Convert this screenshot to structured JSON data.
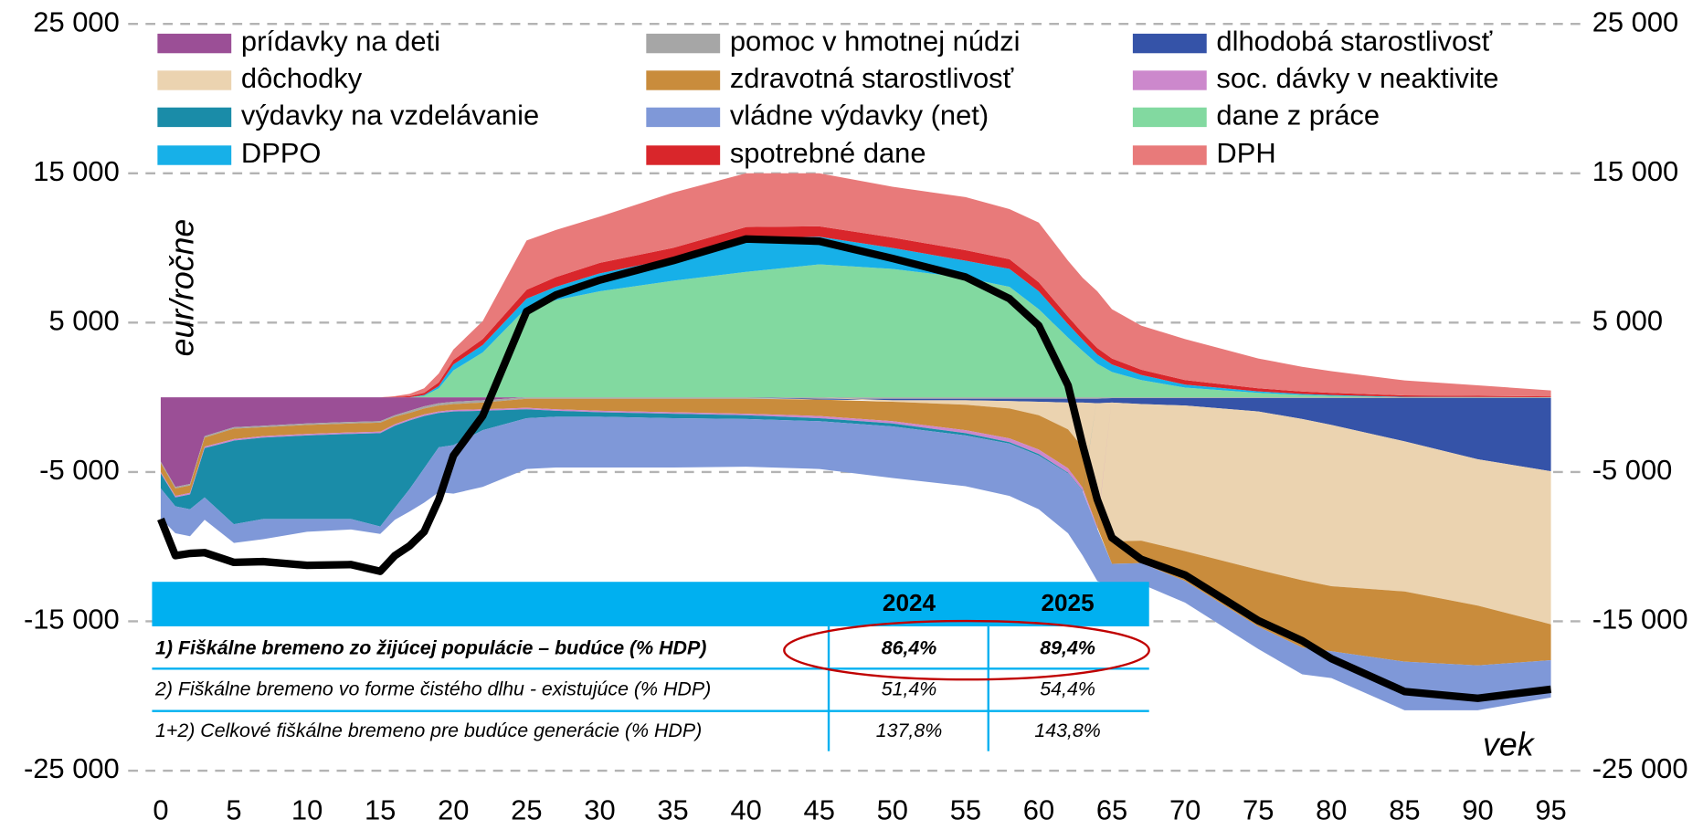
{
  "chart_data": {
    "type": "stacked_area",
    "ylabel": "eur/ročne",
    "xlabel": "vek",
    "x": [
      0,
      1,
      2,
      3,
      5,
      7,
      10,
      13,
      15,
      16,
      17,
      18,
      19,
      20,
      22,
      25,
      27,
      30,
      35,
      40,
      45,
      50,
      55,
      58,
      60,
      62,
      63,
      64,
      65,
      67,
      70,
      75,
      78,
      80,
      85,
      90,
      95
    ],
    "xlim": [
      0,
      95
    ],
    "xticks": [
      0,
      5,
      10,
      15,
      20,
      25,
      30,
      35,
      40,
      45,
      50,
      55,
      60,
      65,
      70,
      75,
      80,
      85,
      90,
      95
    ],
    "ylim": [
      -25000,
      25000
    ],
    "yticks": [
      {
        "value": 25000,
        "label": "25 000"
      },
      {
        "value": 15000,
        "label": "15 000"
      },
      {
        "value": 5000,
        "label": "5 000"
      },
      {
        "value": -5000,
        "label": "-5 000"
      },
      {
        "value": -15000,
        "label": "-15 000"
      },
      {
        "value": -25000,
        "label": "-25 000"
      }
    ],
    "grid": true,
    "series": [
      {
        "name": "prídavky na deti",
        "color": "#9b4f96",
        "values": [
          -4300,
          -6000,
          -5800,
          -2600,
          -2000,
          -1900,
          -1750,
          -1650,
          -1600,
          -1200,
          -900,
          -600,
          -400,
          -300,
          -200,
          0,
          0,
          0,
          0,
          0,
          0,
          0,
          0,
          0,
          0,
          0,
          0,
          0,
          0,
          0,
          0,
          0,
          0,
          0,
          0,
          0,
          0
        ]
      },
      {
        "name": "pomoc v hmotnej núdzi",
        "color": "#a6a6a6",
        "values": [
          -100,
          -100,
          -100,
          -100,
          -100,
          -100,
          -100,
          -100,
          -100,
          -100,
          -150,
          -150,
          -150,
          -150,
          -150,
          -100,
          -100,
          -100,
          -100,
          -100,
          -100,
          -100,
          -100,
          -100,
          -100,
          -100,
          -100,
          -100,
          -50,
          -50,
          -50,
          -50,
          -50,
          -50,
          -50,
          -50,
          -50
        ]
      },
      {
        "name": "dlhodobá starostlivosť",
        "color": "#3553a8",
        "values": [
          0,
          0,
          0,
          0,
          0,
          0,
          0,
          0,
          0,
          0,
          0,
          0,
          0,
          0,
          0,
          0,
          0,
          0,
          0,
          0,
          -50,
          -100,
          -100,
          -150,
          -200,
          -250,
          -250,
          -300,
          -300,
          -400,
          -500,
          -900,
          -1400,
          -1800,
          -2900,
          -4100,
          -4900
        ]
      },
      {
        "name": "dôchodky",
        "color": "#ebd3b0",
        "values": [
          0,
          0,
          0,
          0,
          0,
          0,
          0,
          0,
          0,
          0,
          0,
          0,
          0,
          0,
          0,
          0,
          0,
          0,
          0,
          0,
          0,
          -100,
          -300,
          -500,
          -900,
          -1800,
          -3000,
          -5500,
          -9300,
          -9150,
          -9750,
          -10600,
          -10800,
          -10800,
          -10050,
          -9800,
          -10250
        ]
      },
      {
        "name": "zdravotná starostlivosť",
        "color": "#c98c3c",
        "values": [
          -600,
          -500,
          -500,
          -600,
          -700,
          -600,
          -600,
          -600,
          -600,
          -500,
          -400,
          -400,
          -400,
          -400,
          -450,
          -600,
          -700,
          -800,
          -900,
          -1000,
          -1100,
          -1300,
          -1700,
          -2000,
          -2300,
          -2600,
          -2700,
          -2800,
          -1500,
          -1500,
          -2000,
          -3800,
          -4500,
          -4350,
          -4700,
          -4000,
          -2400
        ]
      },
      {
        "name": "soc. dávky v neaktivite",
        "color": "#cc88cc",
        "values": [
          -100,
          -100,
          -100,
          -100,
          -100,
          -100,
          -100,
          -100,
          -100,
          -100,
          -100,
          -100,
          -100,
          -100,
          -100,
          -100,
          -100,
          -100,
          -100,
          -100,
          -150,
          -150,
          -200,
          -250,
          -300,
          -300,
          -200,
          -100,
          0,
          0,
          0,
          0,
          0,
          0,
          0,
          0,
          0
        ]
      },
      {
        "name": "výdavky na vzdelávanie",
        "color": "#1a8ca8",
        "values": [
          -1000,
          -600,
          -1000,
          -3300,
          -5600,
          -5450,
          -5600,
          -5700,
          -6250,
          -5500,
          -4600,
          -3500,
          -2300,
          -2250,
          -1300,
          -600,
          -400,
          -300,
          -300,
          -250,
          -200,
          -200,
          -150,
          -100,
          -100,
          -50,
          -50,
          0,
          0,
          0,
          0,
          0,
          0,
          0,
          0,
          0,
          0
        ]
      },
      {
        "name": "vládne výdavky (net)",
        "color": "#7f98d8",
        "values": [
          -2000,
          -1800,
          -1800,
          -1500,
          -1250,
          -1350,
          -850,
          -700,
          -500,
          -800,
          -1500,
          -2300,
          -3000,
          -3250,
          -3800,
          -3400,
          -3400,
          -3400,
          -3300,
          -3200,
          -3200,
          -3450,
          -3400,
          -3500,
          -3600,
          -4000,
          -4300,
          -3500,
          -1500,
          -1400,
          -1450,
          -1500,
          -1800,
          -1800,
          -3250,
          -3000,
          -2500
        ]
      },
      {
        "name": "dane z práce",
        "color": "#82d9a0",
        "values": [
          0,
          0,
          0,
          0,
          0,
          0,
          0,
          0,
          0,
          0,
          0,
          100,
          600,
          1800,
          3000,
          6000,
          6500,
          7100,
          7800,
          8400,
          8900,
          8600,
          8000,
          7400,
          5900,
          4000,
          3100,
          2250,
          1700,
          1150,
          650,
          300,
          150,
          100,
          0,
          0,
          0
        ]
      },
      {
        "name": "DPPO",
        "color": "#17b0e8",
        "values": [
          0,
          0,
          0,
          0,
          0,
          0,
          0,
          0,
          0,
          0,
          0,
          50,
          150,
          400,
          500,
          600,
          900,
          1200,
          1500,
          2300,
          1850,
          1400,
          1150,
          1200,
          1200,
          900,
          750,
          600,
          500,
          350,
          200,
          100,
          70,
          50,
          30,
          20,
          10
        ]
      },
      {
        "name": "spotrebné dane",
        "color": "#d9262b",
        "values": [
          0,
          0,
          0,
          0,
          0,
          0,
          0,
          0,
          0,
          30,
          80,
          150,
          250,
          300,
          400,
          600,
          650,
          700,
          700,
          700,
          700,
          700,
          700,
          650,
          600,
          500,
          450,
          450,
          400,
          350,
          300,
          200,
          170,
          150,
          100,
          80,
          50
        ]
      },
      {
        "name": "DPH",
        "color": "#e87a7a",
        "values": [
          0,
          0,
          0,
          0,
          0,
          0,
          0,
          0,
          0,
          50,
          150,
          300,
          600,
          700,
          1200,
          3300,
          3150,
          3100,
          3700,
          3600,
          3550,
          3400,
          3550,
          3350,
          4000,
          3750,
          3700,
          3800,
          3300,
          2950,
          2750,
          2000,
          1650,
          1450,
          1000,
          700,
          400
        ]
      }
    ],
    "line": {
      "color": "#000000",
      "values": [
        -8150,
        -10600,
        -10450,
        -10400,
        -11050,
        -11000,
        -11250,
        -11200,
        -11650,
        -10600,
        -9950,
        -9000,
        -6850,
        -3900,
        -1250,
        5750,
        6850,
        7850,
        9150,
        10600,
        10450,
        9300,
        8050,
        6600,
        4800,
        800,
        -3200,
        -6850,
        -9400,
        -10850,
        -11900,
        -14950,
        -16300,
        -17500,
        -19700,
        -20150,
        -19550
      ]
    }
  },
  "table": {
    "columns": [
      "2024",
      "2025"
    ],
    "rows": [
      {
        "label": "1) Fiškálne bremeno zo žijúcej populácie – budúce (% HDP)",
        "values": [
          "86,4%",
          "89,4%"
        ]
      },
      {
        "label": "2) Fiškálne bremeno vo forme čistého dlhu - existujúce (% HDP)",
        "values": [
          "51,4%",
          "54,4%"
        ]
      },
      {
        "label": "1+2) Celkové fiškálne bremeno pre budúce generácie (% HDP)",
        "values": [
          "137,8%",
          "143,8%"
        ]
      }
    ]
  }
}
